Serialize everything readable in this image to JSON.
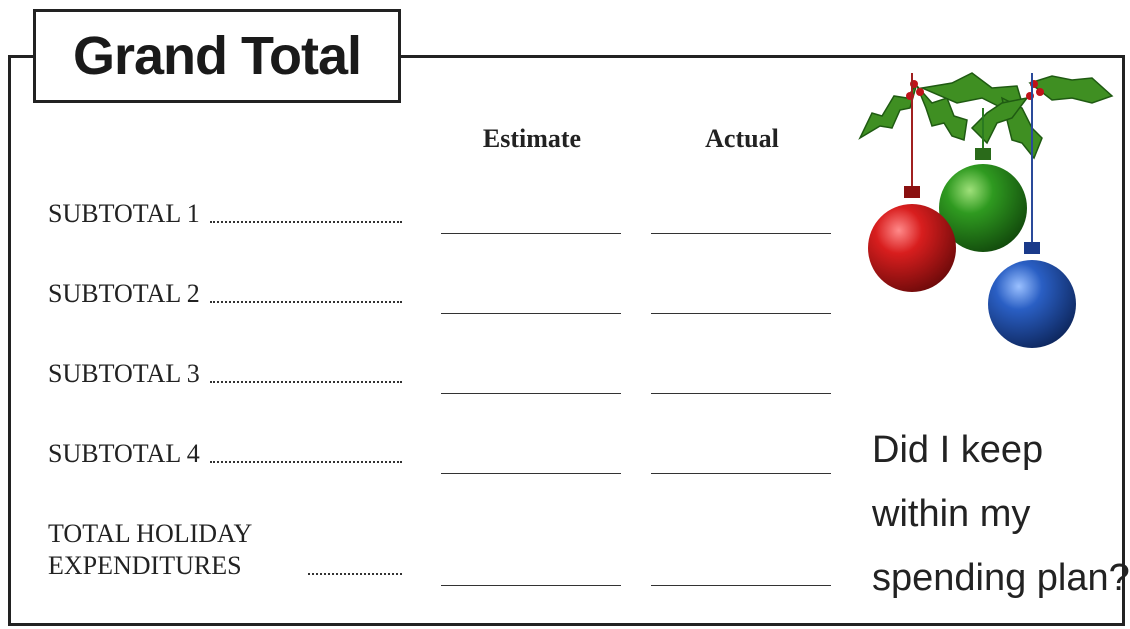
{
  "header": {
    "title": "Grand Total"
  },
  "columns": [
    "Estimate",
    "Actual"
  ],
  "rows": [
    "SUBTOTAL 1",
    "SUBTOTAL 2",
    "SUBTOTAL 3",
    "SUBTOTAL 4",
    "TOTAL HOLIDAY EXPENDITURES"
  ],
  "question": "Did I keep within my spending plan?"
}
